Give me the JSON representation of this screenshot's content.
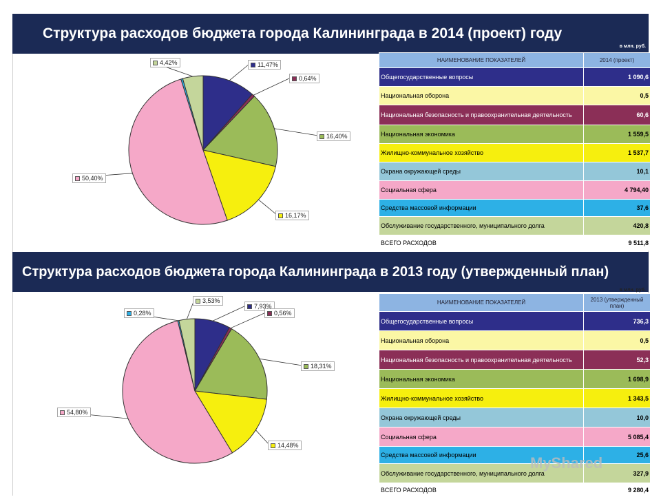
{
  "charts": [
    {
      "title": "Структура расходов бюджета города Калининграда в 2014 (проект) году",
      "unit": "в млн. руб.",
      "col_name": "НАИМЕНОВАНИЕ ПОКАЗАТЕЛЕЙ",
      "col_value": "2014 (проект)",
      "rows": [
        {
          "name": "Общегосударственные вопросы",
          "value": "1 090,6",
          "bg": "#2e2e8a",
          "fg": "#ffffff"
        },
        {
          "name": "Национальная оборона",
          "value": "0,5",
          "bg": "#fbf7a5",
          "fg": "#000000"
        },
        {
          "name": "Национальная безопасность и правоохранительная деятельность",
          "value": "60,6",
          "bg": "#8b2f57",
          "fg": "#ffffff"
        },
        {
          "name": "Национальная экономика",
          "value": "1 559,5",
          "bg": "#9bbb59",
          "fg": "#000000"
        },
        {
          "name": "Жилищно-коммунальное хозяйство",
          "value": "1 537,7",
          "bg": "#f6ef0e",
          "fg": "#000000"
        },
        {
          "name": "Охрана окружающей среды",
          "value": "10,1",
          "bg": "#94c7d9",
          "fg": "#000000"
        },
        {
          "name": "Социальная сфера",
          "value": "4 794,40",
          "bg": "#f5a8c8",
          "fg": "#000000"
        },
        {
          "name": "Средства массовой информации",
          "value": "37,6",
          "bg": "#2db0e6",
          "fg": "#000000"
        },
        {
          "name": "Обслуживание государственного, муниципального долга",
          "value": "420,8",
          "bg": "#c4d69b",
          "fg": "#000000"
        },
        {
          "name": "ВСЕГО РАСХОДОВ",
          "value": "9 511,8",
          "bg": "#ffffff",
          "fg": "#000000"
        }
      ],
      "chart_data": {
        "type": "pie",
        "slices": [
          {
            "label": "11,47%",
            "value": 11.47,
            "color": "#2e2e8a"
          },
          {
            "label": "0,64%",
            "value": 0.64,
            "color": "#8b2f57"
          },
          {
            "label": "16,40%",
            "value": 16.4,
            "color": "#9bbb59"
          },
          {
            "label": "16,17%",
            "value": 16.17,
            "color": "#f6ef0e"
          },
          {
            "label": "50,40%",
            "value": 50.4,
            "color": "#f5a8c8"
          },
          {
            "label": "",
            "value": 0.4,
            "color": "#2db0e6"
          },
          {
            "label": "4,42%",
            "value": 4.42,
            "color": "#c4d69b"
          }
        ]
      }
    },
    {
      "title": "Структура расходов бюджета города Калининграда в 2013 году (утвержденный план)",
      "unit": "в млн. руб.",
      "col_name": "НАИМЕНОВАНИЕ ПОКАЗАТЕЛЕЙ",
      "col_value": "2013 (утвержденный план)",
      "rows": [
        {
          "name": "Общегосударственные вопросы",
          "value": "736,3",
          "bg": "#2e2e8a",
          "fg": "#ffffff"
        },
        {
          "name": "Национальная оборона",
          "value": "0,5",
          "bg": "#fbf7a5",
          "fg": "#000000"
        },
        {
          "name": "Национальная безопасность и правоохранительная деятельность",
          "value": "52,3",
          "bg": "#8b2f57",
          "fg": "#ffffff"
        },
        {
          "name": "Национальная экономика",
          "value": "1 698,9",
          "bg": "#9bbb59",
          "fg": "#000000"
        },
        {
          "name": "Жилищно-коммунальное хозяйство",
          "value": "1 343,5",
          "bg": "#f6ef0e",
          "fg": "#000000"
        },
        {
          "name": "Охрана окружающей среды",
          "value": "10,0",
          "bg": "#94c7d9",
          "fg": "#000000"
        },
        {
          "name": "Социальная сфера",
          "value": "5 085,4",
          "bg": "#f5a8c8",
          "fg": "#000000"
        },
        {
          "name": "Средства массовой информации",
          "value": "25,6",
          "bg": "#2db0e6",
          "fg": "#000000"
        },
        {
          "name": "Обслуживание государственного, муниципального долга",
          "value": "327,9",
          "bg": "#c4d69b",
          "fg": "#000000"
        },
        {
          "name": "ВСЕГО РАСХОДОВ",
          "value": "9 280,4",
          "bg": "#ffffff",
          "fg": "#000000"
        }
      ],
      "chart_data": {
        "type": "pie",
        "slices": [
          {
            "label": "7,93%",
            "value": 7.93,
            "color": "#2e2e8a"
          },
          {
            "label": "0,56%",
            "value": 0.56,
            "color": "#8b2f57"
          },
          {
            "label": "18,31%",
            "value": 18.31,
            "color": "#9bbb59"
          },
          {
            "label": "14,48%",
            "value": 14.48,
            "color": "#f6ef0e"
          },
          {
            "label": "54,80%",
            "value": 54.8,
            "color": "#f5a8c8"
          },
          {
            "label": "0,28%",
            "value": 0.28,
            "color": "#2db0e6"
          },
          {
            "label": "3,53%",
            "value": 3.53,
            "color": "#c4d69b"
          }
        ]
      }
    }
  ],
  "watermark": "MyShared"
}
